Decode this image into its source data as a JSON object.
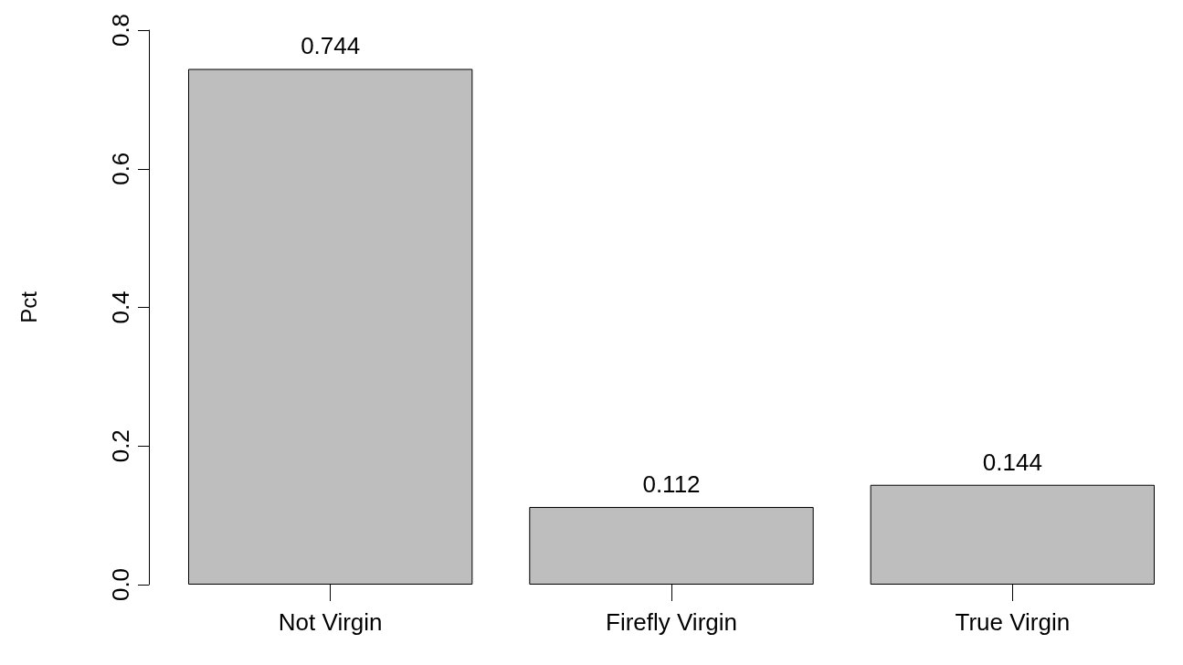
{
  "chart_data": {
    "type": "bar",
    "ylabel": "Pct",
    "categories": [
      "Not Virgin",
      "Firefly Virgin",
      "True Virgin"
    ],
    "values": [
      0.744,
      0.112,
      0.144
    ],
    "color": "#bebebe",
    "ylim": [
      0,
      0.8
    ],
    "yticks": [
      {
        "value": 0,
        "label": "0.0"
      },
      0.2,
      0.4,
      0.6,
      0.8
    ],
    "data_labels": true,
    "grid": false
  }
}
